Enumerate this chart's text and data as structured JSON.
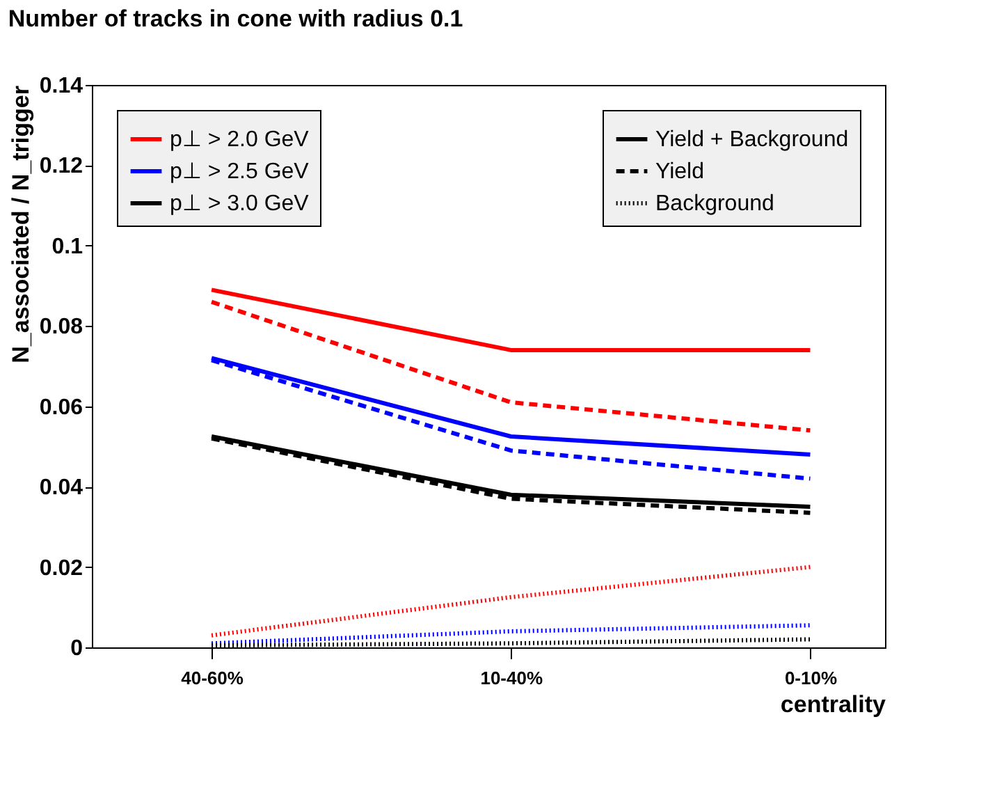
{
  "chart_data": {
    "type": "line",
    "title": "Number of tracks in cone with radius 0.1",
    "xlabel": "centrality",
    "ylabel": "N_associated / N_trigger",
    "categories": [
      "40-60%",
      "10-40%",
      "0-10%"
    ],
    "ylim": [
      0,
      0.14
    ],
    "yticks": [
      0,
      0.02,
      0.04,
      0.06,
      0.08,
      0.1,
      0.12,
      0.14
    ],
    "grid": false,
    "legend": "top",
    "marker": "none",
    "annotations": [
      "Yield + Background",
      "Yield",
      "Background"
    ],
    "series": [
      {
        "name": "p⊥ > 2.0 GeV",
        "color": "#ff0000",
        "line_style": "solid",
        "values": [
          0.089,
          0.074,
          0.074
        ]
      },
      {
        "color": "#ff0000",
        "line_style": "dashed",
        "values": [
          0.086,
          0.061,
          0.054
        ]
      },
      {
        "color": "#ff0000",
        "line_style": "dotted",
        "values": [
          0.003,
          0.0125,
          0.02
        ]
      },
      {
        "name": "p⊥ > 2.5 GeV",
        "color": "#0000ff",
        "line_style": "solid",
        "values": [
          0.072,
          0.0525,
          0.048
        ]
      },
      {
        "color": "#0000ff",
        "line_style": "dashed",
        "values": [
          0.0715,
          0.049,
          0.042
        ]
      },
      {
        "color": "#0000ff",
        "line_style": "dotted",
        "values": [
          0.001,
          0.004,
          0.0055
        ]
      },
      {
        "name": "p⊥ > 3.0 GeV",
        "color": "#000000",
        "line_style": "solid",
        "values": [
          0.0525,
          0.038,
          0.035
        ]
      },
      {
        "color": "#000000",
        "line_style": "dashed",
        "values": [
          0.052,
          0.037,
          0.0335
        ]
      },
      {
        "color": "#000000",
        "line_style": "dotted",
        "values": [
          0.0005,
          0.001,
          0.002
        ]
      }
    ]
  }
}
